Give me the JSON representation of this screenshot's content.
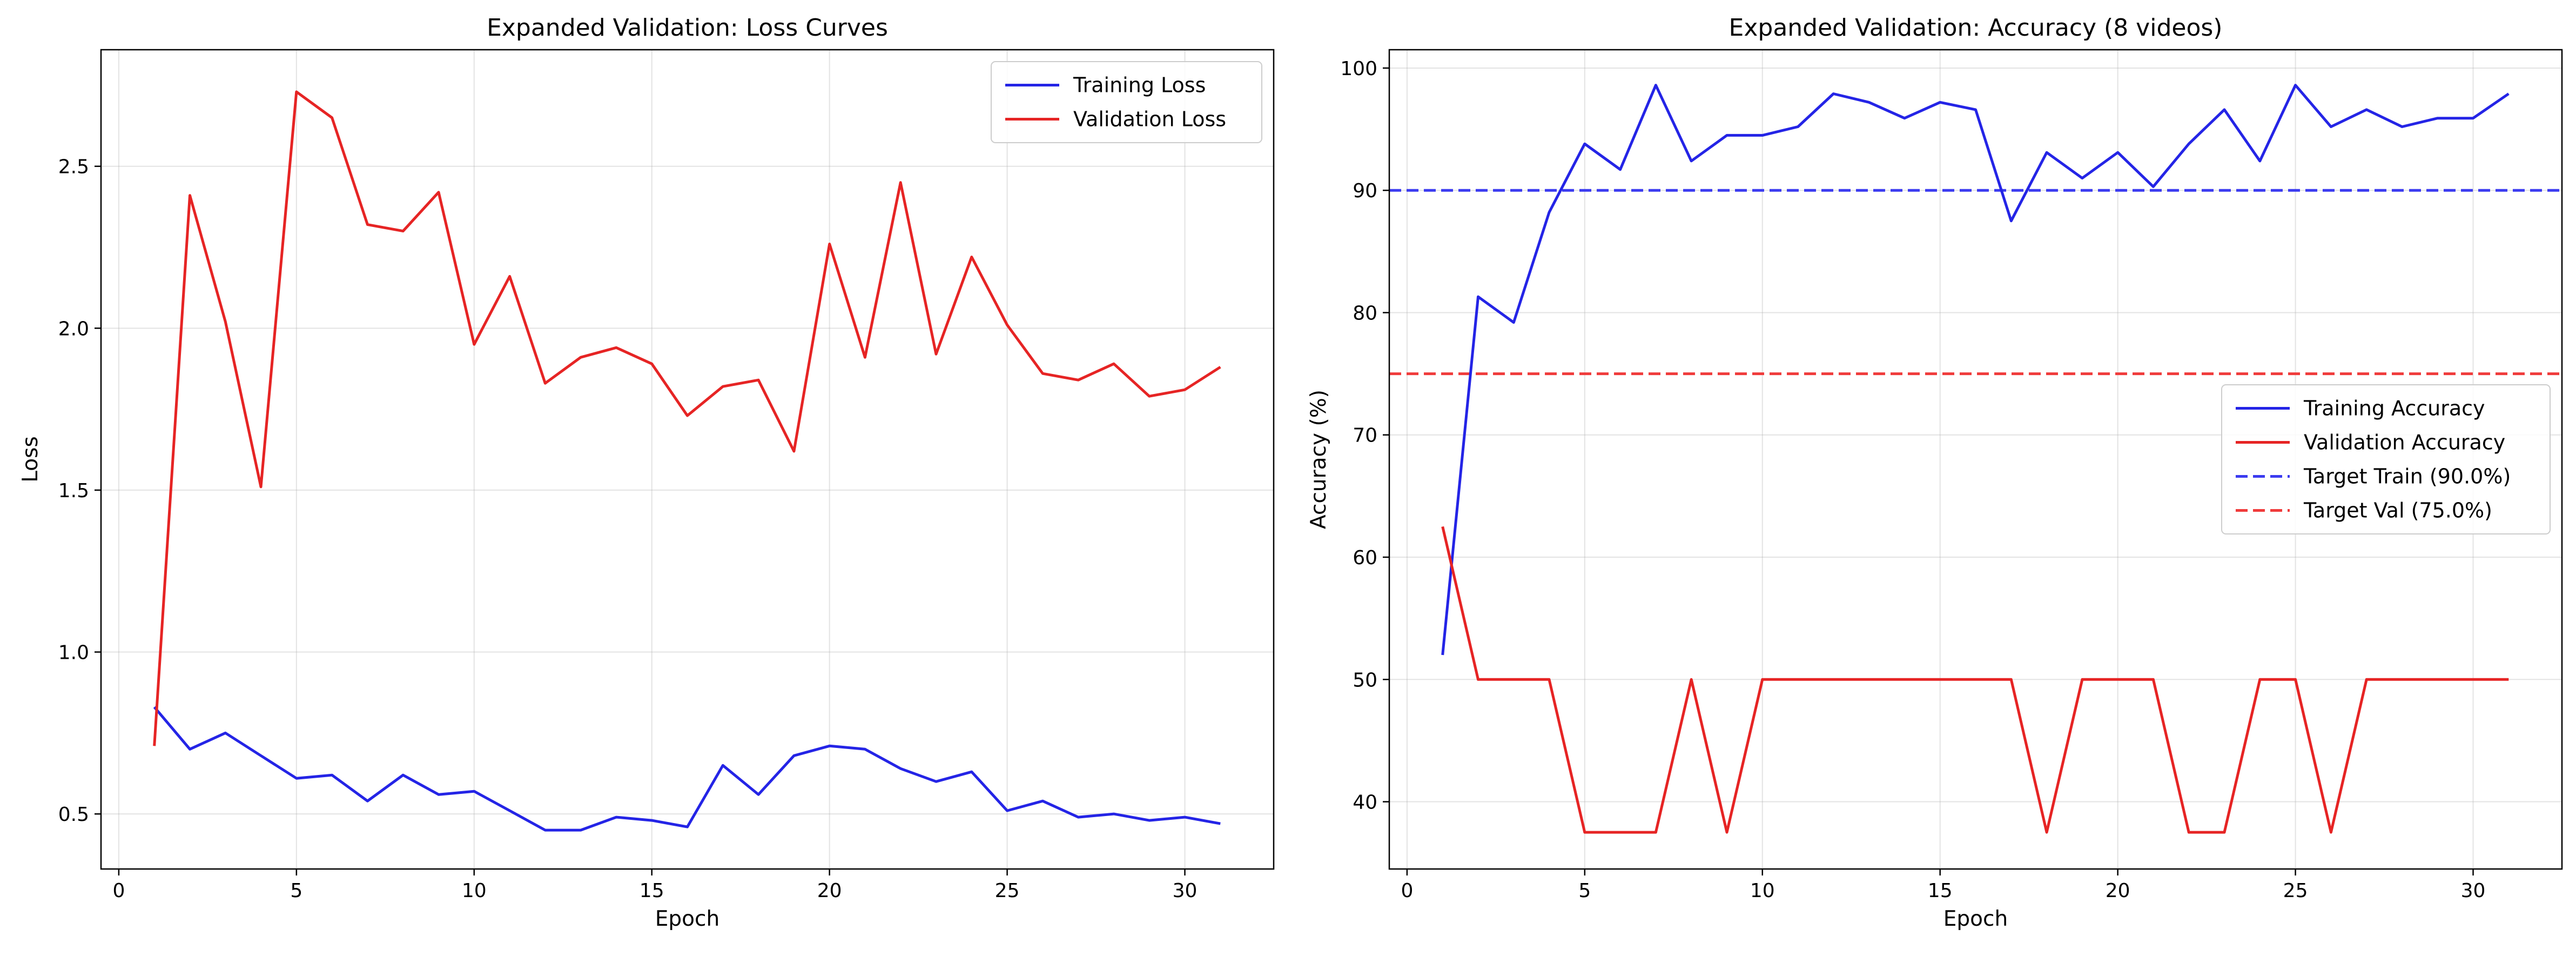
{
  "chart_data": [
    {
      "type": "line",
      "title": "Expanded Validation: Loss Curves",
      "xlabel": "Epoch",
      "ylabel": "Loss",
      "xlim": [
        -0.5,
        32.5
      ],
      "ylim": [
        0.33,
        2.86
      ],
      "xticks": [
        0,
        5,
        10,
        15,
        20,
        25,
        30
      ],
      "yticks": [
        0.5,
        1.0,
        1.5,
        2.0,
        2.5
      ],
      "ytick_decimals": 1,
      "grid": true,
      "legend": "top-right",
      "x": [
        1,
        2,
        3,
        4,
        5,
        6,
        7,
        8,
        9,
        10,
        11,
        12,
        13,
        14,
        15,
        16,
        17,
        18,
        19,
        20,
        21,
        22,
        23,
        24,
        25,
        26,
        27,
        28,
        29,
        30,
        31
      ],
      "series": [
        {
          "name": "Training Loss",
          "color": "#2424e6",
          "style": "solid",
          "values": [
            0.83,
            0.7,
            0.75,
            0.68,
            0.61,
            0.62,
            0.54,
            0.62,
            0.56,
            0.57,
            0.51,
            0.45,
            0.45,
            0.49,
            0.48,
            0.46,
            0.65,
            0.56,
            0.68,
            0.71,
            0.7,
            0.64,
            0.6,
            0.63,
            0.51,
            0.54,
            0.49,
            0.5,
            0.48,
            0.49,
            0.47
          ]
        },
        {
          "name": "Validation Loss",
          "color": "#e62424",
          "style": "solid",
          "values": [
            0.71,
            2.41,
            2.02,
            1.51,
            2.73,
            2.65,
            2.32,
            2.3,
            2.42,
            1.95,
            2.16,
            1.83,
            1.91,
            1.94,
            1.89,
            1.73,
            1.82,
            1.84,
            1.62,
            2.26,
            1.91,
            2.45,
            1.92,
            2.22,
            2.01,
            1.86,
            1.84,
            1.89,
            1.79,
            1.81,
            1.88
          ]
        }
      ]
    },
    {
      "type": "line",
      "title": "Expanded Validation: Accuracy (8 videos)",
      "xlabel": "Epoch",
      "ylabel": "Accuracy (%)",
      "xlim": [
        -0.5,
        32.5
      ],
      "ylim": [
        34.5,
        101.5
      ],
      "xticks": [
        0,
        5,
        10,
        15,
        20,
        25,
        30
      ],
      "yticks": [
        40,
        50,
        60,
        70,
        80,
        90,
        100
      ],
      "ytick_decimals": 0,
      "grid": true,
      "legend": "center-right",
      "x": [
        1,
        2,
        3,
        4,
        5,
        6,
        7,
        8,
        9,
        10,
        11,
        12,
        13,
        14,
        15,
        16,
        17,
        18,
        19,
        20,
        21,
        22,
        23,
        24,
        25,
        26,
        27,
        28,
        29,
        30,
        31
      ],
      "series": [
        {
          "name": "Training Accuracy",
          "color": "#2424e6",
          "style": "solid",
          "values": [
            52.0,
            81.3,
            79.2,
            88.2,
            93.8,
            91.7,
            98.6,
            92.4,
            94.5,
            94.5,
            95.2,
            97.9,
            97.2,
            95.9,
            97.2,
            96.6,
            87.5,
            93.1,
            91.0,
            93.1,
            90.3,
            93.8,
            96.6,
            92.4,
            98.6,
            95.2,
            96.6,
            95.2,
            95.9,
            95.9,
            97.9
          ]
        },
        {
          "name": "Validation Accuracy",
          "color": "#e62424",
          "style": "solid",
          "values": [
            62.5,
            50.0,
            50.0,
            50.0,
            37.5,
            37.5,
            37.5,
            50.0,
            37.5,
            50.0,
            50.0,
            50.0,
            50.0,
            50.0,
            50.0,
            50.0,
            50.0,
            37.5,
            50.0,
            50.0,
            50.0,
            37.5,
            37.5,
            50.0,
            50.0,
            37.5,
            50.0,
            50.0,
            50.0,
            50.0,
            50.0
          ]
        }
      ],
      "hlines": [
        {
          "name": "Target Train (90.0%)",
          "y": 90.0,
          "color": "#3b3bf0",
          "style": "dashed"
        },
        {
          "name": "Target Val (75.0%)",
          "y": 75.0,
          "color": "#f03b3b",
          "style": "dashed"
        }
      ]
    }
  ]
}
